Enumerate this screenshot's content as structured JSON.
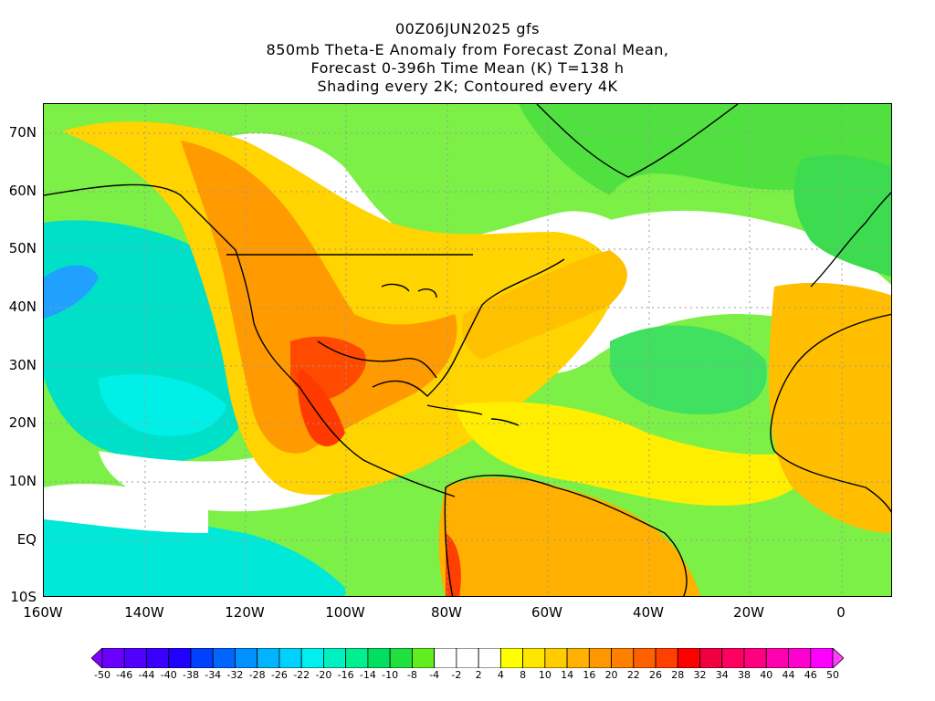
{
  "title": {
    "line1": "00Z06JUN2025 gfs",
    "line2": "850mb Theta-E Anomaly from Forecast Zonal Mean,",
    "line3": "Forecast 0-396h Time Mean (K) T=138 h",
    "line4": "Shading every 2K; Contoured every 4K"
  },
  "axes": {
    "y_labels": [
      "70N",
      "60N",
      "50N",
      "40N",
      "30N",
      "20N",
      "10N",
      "EQ",
      "10S"
    ],
    "x_labels": [
      "160W",
      "140W",
      "120W",
      "100W",
      "80W",
      "60W",
      "40W",
      "20W",
      "0"
    ]
  },
  "colorbar": {
    "labels": [
      "-50",
      "-46",
      "-44",
      "-40",
      "-38",
      "-34",
      "-32",
      "-28",
      "-26",
      "-22",
      "-20",
      "-16",
      "-14",
      "-10",
      "-8",
      "-4",
      "-2",
      "2",
      "4",
      "8",
      "10",
      "14",
      "16",
      "20",
      "22",
      "26",
      "28",
      "32",
      "34",
      "38",
      "40",
      "44",
      "46",
      "50"
    ],
    "colors": [
      "#8000ff",
      "#6a00ff",
      "#5000ff",
      "#3a00ff",
      "#2000ff",
      "#0040ff",
      "#0066ff",
      "#0090ff",
      "#00b4ff",
      "#00d2ff",
      "#00f0f0",
      "#00f0c0",
      "#00f090",
      "#00e060",
      "#20e040",
      "#60ee20",
      "#ffffff",
      "#ffffff",
      "#ffffff",
      "#ffff00",
      "#ffe600",
      "#ffcc00",
      "#ffb000",
      "#ff9800",
      "#ff8000",
      "#ff6000",
      "#ff4000",
      "#ff0000",
      "#f00040",
      "#ff0060",
      "#ff0080",
      "#ff00b0",
      "#ff00d0",
      "#ff00ff",
      "#ff40ff"
    ]
  },
  "palette": {
    "land_outline": "#000000",
    "grid": "#9a9a9a"
  }
}
